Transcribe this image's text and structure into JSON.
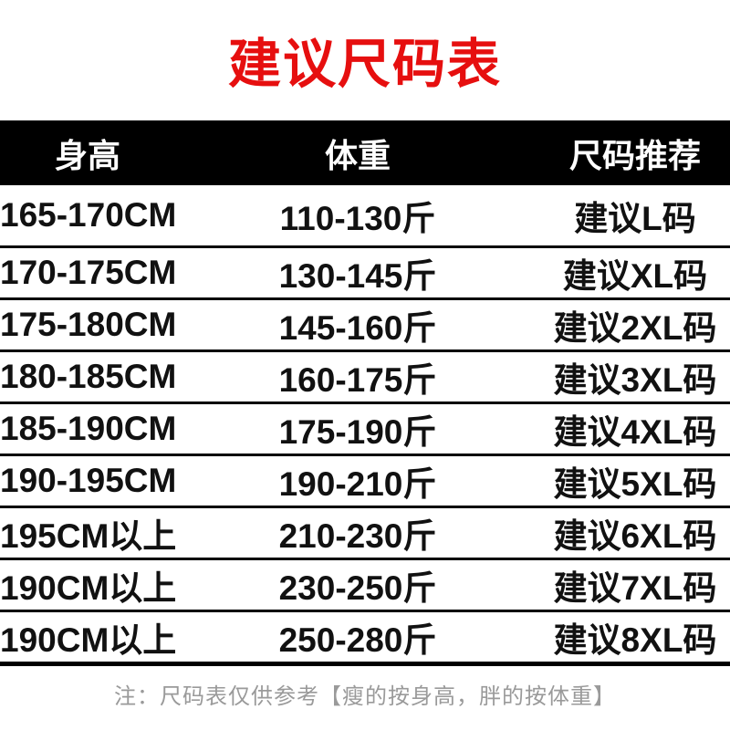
{
  "title": "建议尺码表",
  "colors": {
    "title_red": "#e60f0f",
    "header_bg": "#000000",
    "header_text": "#ffffff",
    "row_text": "#111111",
    "divider": "#000000",
    "note_gray": "#9a9a9a"
  },
  "table": {
    "headers": [
      "身高",
      "体重",
      "尺码推荐"
    ],
    "rows": [
      {
        "height": "165-170CM",
        "weight": "110-130斤",
        "size": "建议L码"
      },
      {
        "height": "170-175CM",
        "weight": "130-145斤",
        "size": "建议XL码"
      },
      {
        "height": "175-180CM",
        "weight": "145-160斤",
        "size": "建议2XL码"
      },
      {
        "height": "180-185CM",
        "weight": "160-175斤",
        "size": "建议3XL码"
      },
      {
        "height": "185-190CM",
        "weight": "175-190斤",
        "size": "建议4XL码"
      },
      {
        "height": "190-195CM",
        "weight": "190-210斤",
        "size": "建议5XL码"
      },
      {
        "height": "195CM以上",
        "weight": "210-230斤",
        "size": "建议6XL码"
      },
      {
        "height": "190CM以上",
        "weight": "230-250斤",
        "size": "建议7XL码"
      },
      {
        "height": "190CM以上",
        "weight": "250-280斤",
        "size": "建议8XL码"
      }
    ]
  },
  "footer": {
    "note": "注：尺码表仅供参考【瘦的按身高，胖的按体重】"
  }
}
